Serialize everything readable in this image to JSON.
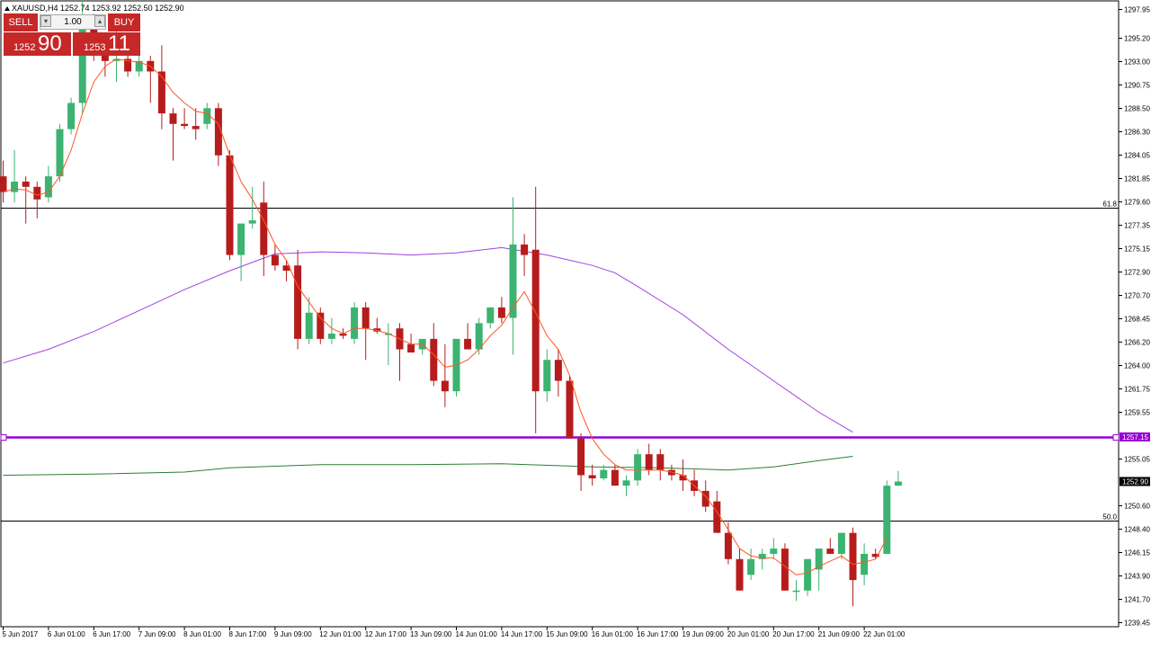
{
  "header": {
    "symbol": "XAUUSD,H4",
    "ohlc": "1252.74 1253.92 1252.50 1252.90"
  },
  "trade_panel": {
    "sell_label": "SELL",
    "buy_label": "BUY",
    "lot_size": "1.00",
    "sell_price_small": "1252",
    "sell_price_big": "90",
    "buy_price_small": "1253",
    "buy_price_big": "11",
    "button_color": "#c62828"
  },
  "chart_data": {
    "type": "candlestick",
    "timeframe": "H4",
    "ylim": [
      1239.05,
      1298.73
    ],
    "yticks": [
      "1297.95",
      "1295.20",
      "1293.00",
      "1290.75",
      "1288.50",
      "1286.30",
      "1284.05",
      "1281.85",
      "1279.60",
      "1277.35",
      "1275.15",
      "1272.90",
      "1270.70",
      "1268.45",
      "1266.20",
      "1264.00",
      "1261.75",
      "1259.55",
      "1255.05",
      "1250.60",
      "1248.40",
      "1246.15",
      "1243.90",
      "1241.70",
      "1239.45"
    ],
    "xtick_labels": [
      {
        "bar": 0,
        "label": "5 Jun 2017"
      },
      {
        "bar": 4,
        "label": "6 Jun 01:00"
      },
      {
        "bar": 8,
        "label": "6 Jun 17:00"
      },
      {
        "bar": 12,
        "label": "7 Jun 09:00"
      },
      {
        "bar": 16,
        "label": "8 Jun 01:00"
      },
      {
        "bar": 20,
        "label": "8 Jun 17:00"
      },
      {
        "bar": 24,
        "label": "9 Jun 09:00"
      },
      {
        "bar": 28,
        "label": "12 Jun 01:00"
      },
      {
        "bar": 32,
        "label": "12 Jun 17:00"
      },
      {
        "bar": 36,
        "label": "13 Jun 09:00"
      },
      {
        "bar": 40,
        "label": "14 Jun 01:00"
      },
      {
        "bar": 44,
        "label": "14 Jun 17:00"
      },
      {
        "bar": 48,
        "label": "15 Jun 09:00"
      },
      {
        "bar": 52,
        "label": "16 Jun 01:00"
      },
      {
        "bar": 56,
        "label": "16 Jun 17:00"
      },
      {
        "bar": 60,
        "label": "19 Jun 09:00"
      },
      {
        "bar": 64,
        "label": "20 Jun 01:00"
      },
      {
        "bar": 68,
        "label": "20 Jun 17:00"
      },
      {
        "bar": 72,
        "label": "21 Jun 09:00"
      },
      {
        "bar": 76,
        "label": "22 Jun 01:00"
      }
    ],
    "candles": [
      [
        1282.0,
        1283.5,
        1279.5,
        1280.5
      ],
      [
        1280.5,
        1284.5,
        1279.5,
        1281.5
      ],
      [
        1281.5,
        1282.0,
        1277.5,
        1281.0
      ],
      [
        1281.0,
        1281.5,
        1278.0,
        1279.8
      ],
      [
        1280.0,
        1283.0,
        1279.5,
        1282.0
      ],
      [
        1282.0,
        1287.0,
        1281.5,
        1286.5
      ],
      [
        1286.5,
        1289.5,
        1286.0,
        1289.0
      ],
      [
        1289.0,
        1299.0,
        1288.0,
        1296.0
      ],
      [
        1296.0,
        1297.5,
        1293.0,
        1294.0
      ],
      [
        1294.0,
        1295.5,
        1291.5,
        1293.0
      ],
      [
        1293.0,
        1296.5,
        1291.0,
        1293.2
      ],
      [
        1293.2,
        1294.0,
        1291.5,
        1292.0
      ],
      [
        1292.0,
        1293.5,
        1291.5,
        1293.0
      ],
      [
        1293.0,
        1293.5,
        1289.0,
        1292.0
      ],
      [
        1292.0,
        1294.5,
        1286.5,
        1288.0
      ],
      [
        1288.0,
        1288.5,
        1283.5,
        1287.0
      ],
      [
        1287.0,
        1288.5,
        1286.5,
        1286.8
      ],
      [
        1286.8,
        1288.5,
        1285.5,
        1286.5
      ],
      [
        1287.0,
        1289.0,
        1286.5,
        1288.5
      ],
      [
        1288.5,
        1289.0,
        1283.0,
        1284.0
      ],
      [
        1284.0,
        1284.5,
        1274.0,
        1274.5
      ],
      [
        1274.5,
        1277.5,
        1272.0,
        1277.5
      ],
      [
        1277.5,
        1281.0,
        1277.0,
        1277.8
      ],
      [
        1279.5,
        1281.5,
        1272.5,
        1274.5
      ],
      [
        1274.5,
        1275.5,
        1273.0,
        1273.5
      ],
      [
        1273.5,
        1274.0,
        1272.0,
        1273.0
      ],
      [
        1273.5,
        1275.0,
        1265.5,
        1266.5
      ],
      [
        1266.5,
        1270.5,
        1266.0,
        1269.0
      ],
      [
        1269.0,
        1269.5,
        1266.0,
        1266.5
      ],
      [
        1266.5,
        1268.5,
        1266.0,
        1267.0
      ],
      [
        1267.0,
        1267.5,
        1266.5,
        1266.8
      ],
      [
        1266.5,
        1270.0,
        1266.0,
        1269.5
      ],
      [
        1269.5,
        1270.0,
        1264.5,
        1267.5
      ],
      [
        1267.5,
        1268.5,
        1267.0,
        1267.2
      ],
      [
        1267.0,
        1268.0,
        1264.0,
        1267.0
      ],
      [
        1267.5,
        1268.0,
        1262.5,
        1265.5
      ],
      [
        1266.0,
        1267.0,
        1265.5,
        1265.2
      ],
      [
        1265.5,
        1266.5,
        1265.0,
        1266.5
      ],
      [
        1266.5,
        1268.0,
        1262.0,
        1262.5
      ],
      [
        1262.5,
        1266.0,
        1260.0,
        1261.5
      ],
      [
        1261.5,
        1266.5,
        1261.0,
        1266.5
      ],
      [
        1266.5,
        1268.0,
        1265.5,
        1265.5
      ],
      [
        1265.5,
        1268.5,
        1265.0,
        1268.0
      ],
      [
        1268.0,
        1269.0,
        1267.5,
        1269.5
      ],
      [
        1269.5,
        1270.5,
        1268.0,
        1268.5
      ],
      [
        1268.5,
        1280.0,
        1265.0,
        1275.5
      ],
      [
        1275.5,
        1276.5,
        1272.5,
        1274.5
      ],
      [
        1275.0,
        1281.0,
        1257.5,
        1261.5
      ],
      [
        1261.5,
        1265.5,
        1260.5,
        1264.5
      ],
      [
        1264.5,
        1265.5,
        1261.0,
        1262.5
      ],
      [
        1262.5,
        1263.0,
        1257.0,
        1257.0
      ],
      [
        1257.0,
        1257.5,
        1252.0,
        1253.5
      ],
      [
        1253.5,
        1254.5,
        1252.5,
        1253.2
      ],
      [
        1253.2,
        1254.5,
        1253.0,
        1254.0
      ],
      [
        1254.0,
        1254.5,
        1252.5,
        1252.5
      ],
      [
        1252.5,
        1253.5,
        1251.5,
        1253.0
      ],
      [
        1253.0,
        1256.0,
        1252.5,
        1255.5
      ],
      [
        1255.5,
        1256.5,
        1253.5,
        1254.0
      ],
      [
        1255.5,
        1256.0,
        1253.0,
        1254.0
      ],
      [
        1254.0,
        1254.5,
        1253.0,
        1253.5
      ],
      [
        1253.5,
        1255.0,
        1252.0,
        1253.0
      ],
      [
        1253.0,
        1254.0,
        1251.5,
        1252.0
      ],
      [
        1252.0,
        1253.0,
        1250.0,
        1250.5
      ],
      [
        1251.0,
        1252.0,
        1248.0,
        1248.0
      ],
      [
        1248.0,
        1249.0,
        1245.0,
        1245.5
      ],
      [
        1245.5,
        1246.5,
        1242.5,
        1242.5
      ],
      [
        1244.0,
        1246.5,
        1243.5,
        1245.5
      ],
      [
        1245.5,
        1246.5,
        1244.5,
        1246.0
      ],
      [
        1246.0,
        1247.5,
        1245.5,
        1246.5
      ],
      [
        1246.5,
        1247.0,
        1242.5,
        1242.5
      ],
      [
        1242.5,
        1243.5,
        1241.5,
        1242.5
      ],
      [
        1242.5,
        1245.5,
        1242.0,
        1245.5
      ],
      [
        1244.5,
        1246.5,
        1242.5,
        1246.5
      ],
      [
        1246.5,
        1247.5,
        1246.0,
        1246.0
      ],
      [
        1246.0,
        1248.0,
        1245.5,
        1248.0
      ],
      [
        1248.0,
        1248.5,
        1241.0,
        1243.5
      ],
      [
        1244.0,
        1247.0,
        1243.0,
        1246.0
      ],
      [
        1246.0,
        1246.5,
        1245.5,
        1245.7
      ],
      [
        1246.0,
        1253.0,
        1246.0,
        1252.5
      ],
      [
        1252.5,
        1253.9,
        1252.5,
        1252.9
      ]
    ],
    "colors": {
      "up": "#3cb371",
      "down": "#b71c1c",
      "ema_fast": "#ff5722",
      "ma_violet": "#a142e0",
      "ma_green": "#2e7d32",
      "level_line": "#000000",
      "resistance": "#9400d3"
    },
    "ma_violet": [
      [
        0,
        1264.2
      ],
      [
        4,
        1265.5
      ],
      [
        8,
        1267.2
      ],
      [
        12,
        1269.2
      ],
      [
        16,
        1271.2
      ],
      [
        20,
        1273.0
      ],
      [
        24,
        1274.6
      ],
      [
        28,
        1274.8
      ],
      [
        32,
        1274.7
      ],
      [
        36,
        1274.5
      ],
      [
        40,
        1274.7
      ],
      [
        44,
        1275.2
      ],
      [
        48,
        1274.5
      ],
      [
        52,
        1273.5
      ],
      [
        54,
        1272.8
      ],
      [
        56,
        1271.5
      ],
      [
        60,
        1268.8
      ],
      [
        64,
        1265.5
      ],
      [
        68,
        1262.5
      ],
      [
        72,
        1259.5
      ],
      [
        75,
        1257.6
      ]
    ],
    "ma_green": [
      [
        0,
        1253.5
      ],
      [
        8,
        1253.6
      ],
      [
        16,
        1253.8
      ],
      [
        20,
        1254.2
      ],
      [
        28,
        1254.5
      ],
      [
        36,
        1254.5
      ],
      [
        44,
        1254.6
      ],
      [
        52,
        1254.3
      ],
      [
        58,
        1254.2
      ],
      [
        64,
        1254.0
      ],
      [
        68,
        1254.3
      ],
      [
        72,
        1254.9
      ],
      [
        75,
        1255.3
      ]
    ],
    "ema_fast": [
      [
        0,
        1280.5
      ],
      [
        1,
        1280.8
      ],
      [
        2,
        1280.7
      ],
      [
        3,
        1280.2
      ],
      [
        4,
        1280.5
      ],
      [
        5,
        1282.0
      ],
      [
        6,
        1284.5
      ],
      [
        7,
        1288.0
      ],
      [
        8,
        1291.0
      ],
      [
        9,
        1292.5
      ],
      [
        10,
        1293.2
      ],
      [
        11,
        1293.0
      ],
      [
        12,
        1292.9
      ],
      [
        13,
        1292.5
      ],
      [
        14,
        1291.5
      ],
      [
        15,
        1290.0
      ],
      [
        16,
        1289.0
      ],
      [
        17,
        1288.2
      ],
      [
        18,
        1288.0
      ],
      [
        19,
        1287.0
      ],
      [
        20,
        1284.0
      ],
      [
        21,
        1281.5
      ],
      [
        22,
        1279.8
      ],
      [
        23,
        1277.8
      ],
      [
        24,
        1275.5
      ],
      [
        25,
        1274.0
      ],
      [
        26,
        1271.5
      ],
      [
        27,
        1270.0
      ],
      [
        28,
        1268.5
      ],
      [
        29,
        1267.5
      ],
      [
        30,
        1267.0
      ],
      [
        31,
        1267.5
      ],
      [
        32,
        1267.5
      ],
      [
        33,
        1267.3
      ],
      [
        34,
        1267.0
      ],
      [
        35,
        1266.5
      ],
      [
        36,
        1266.0
      ],
      [
        37,
        1266.0
      ],
      [
        38,
        1265.0
      ],
      [
        39,
        1263.8
      ],
      [
        40,
        1264.0
      ],
      [
        41,
        1264.5
      ],
      [
        42,
        1265.5
      ],
      [
        43,
        1266.8
      ],
      [
        44,
        1267.8
      ],
      [
        45,
        1269.5
      ],
      [
        46,
        1271.0
      ],
      [
        47,
        1269.0
      ],
      [
        48,
        1266.8
      ],
      [
        49,
        1265.5
      ],
      [
        50,
        1263.0
      ],
      [
        51,
        1259.5
      ],
      [
        52,
        1257.0
      ],
      [
        53,
        1255.5
      ],
      [
        54,
        1254.5
      ],
      [
        55,
        1254.0
      ],
      [
        56,
        1254.0
      ],
      [
        57,
        1254.0
      ],
      [
        58,
        1254.0
      ],
      [
        59,
        1253.8
      ],
      [
        60,
        1253.5
      ],
      [
        61,
        1252.5
      ],
      [
        62,
        1251.5
      ],
      [
        63,
        1250.0
      ],
      [
        64,
        1248.3
      ],
      [
        65,
        1246.5
      ],
      [
        66,
        1245.8
      ],
      [
        67,
        1245.6
      ],
      [
        68,
        1245.6
      ],
      [
        69,
        1244.8
      ],
      [
        70,
        1244.0
      ],
      [
        71,
        1244.2
      ],
      [
        72,
        1244.8
      ],
      [
        73,
        1245.3
      ],
      [
        74,
        1245.8
      ],
      [
        75,
        1245.0
      ],
      [
        76,
        1245.2
      ],
      [
        77,
        1245.5
      ],
      [
        78,
        1247.5
      ]
    ],
    "levels": [
      {
        "value": 1279.0,
        "label": "61.8"
      },
      {
        "value": 1249.2,
        "label": "50.0"
      }
    ],
    "resistance_level": {
      "value": 1257.15,
      "label": "1257.15"
    },
    "current_price": {
      "value": 1252.9,
      "label": "1252.90"
    }
  }
}
